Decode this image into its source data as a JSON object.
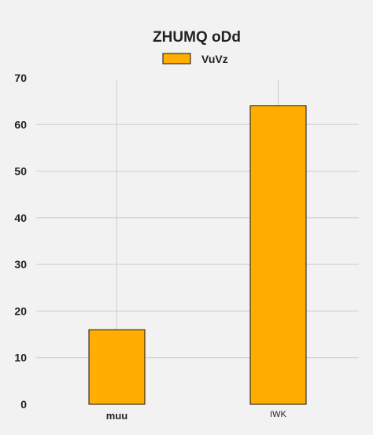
{
  "chart_data": {
    "type": "bar",
    "title": "ZHUMQ oDd",
    "xlabel": "",
    "ylabel": "",
    "categories": [
      "muu",
      "IWK"
    ],
    "series": [
      {
        "name": "VuVz",
        "values": [
          16,
          64
        ]
      }
    ],
    "ylim": [
      0,
      70
    ],
    "yticks": [
      0,
      10,
      20,
      30,
      40,
      50,
      60,
      70
    ],
    "grid": true,
    "legend_position": "top-center",
    "colors": {
      "bar_fill": "#ffad00",
      "bar_edge": "#111111",
      "grid": "#cccccc",
      "background": "#f2f2f2"
    }
  }
}
